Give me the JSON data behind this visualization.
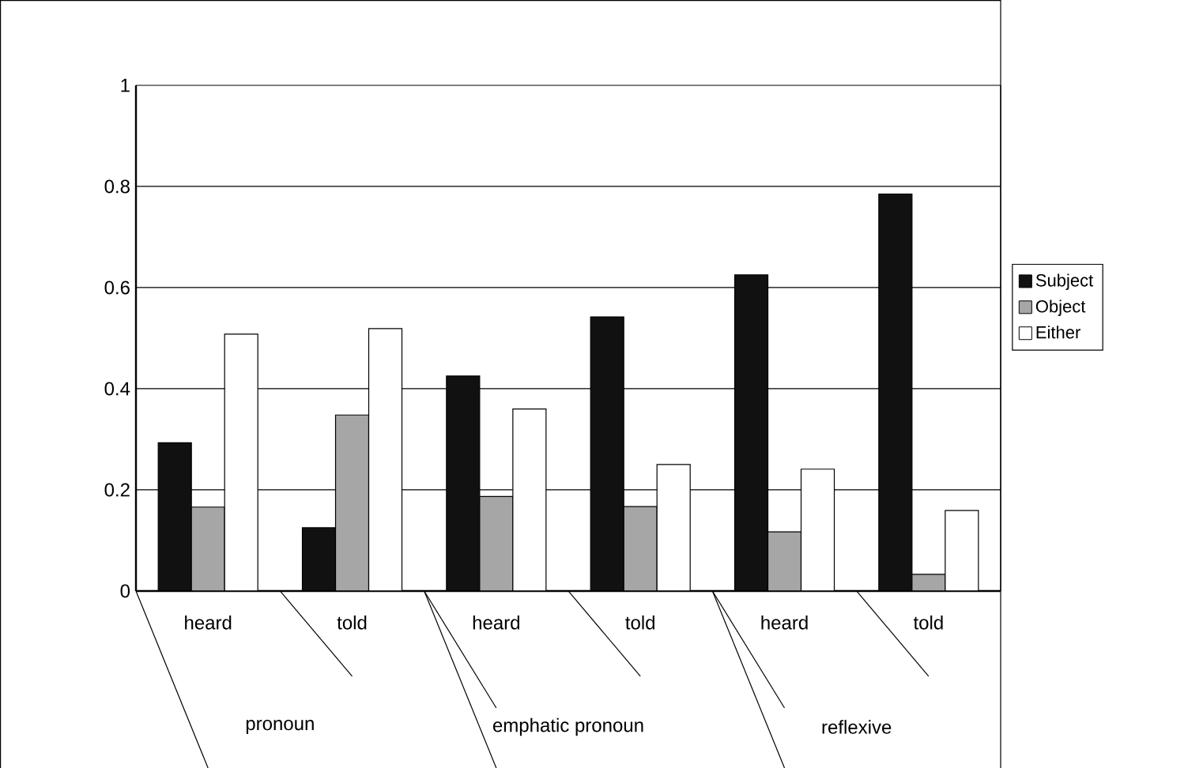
{
  "chart_data": {
    "type": "bar",
    "categories": [
      "heard",
      "told",
      "heard",
      "told",
      "heard",
      "told"
    ],
    "series": [
      {
        "name": "Subject",
        "color": "#111111",
        "values": [
          0.293,
          0.125,
          0.425,
          0.542,
          0.625,
          0.785
        ]
      },
      {
        "name": "Object",
        "color": "#a6a6a6",
        "values": [
          0.166,
          0.348,
          0.187,
          0.167,
          0.117,
          0.033
        ]
      },
      {
        "name": "Either",
        "color": "#ffffff",
        "values": [
          0.508,
          0.519,
          0.36,
          0.25,
          0.241,
          0.159
        ]
      }
    ],
    "annotations": [
      "pronoun",
      "emphatic pronoun",
      "reflexive"
    ],
    "ylim": [
      0,
      1
    ],
    "yticks": [
      0,
      0.2,
      0.4,
      0.6,
      0.8,
      1
    ],
    "grid": "y",
    "legend": "right"
  }
}
